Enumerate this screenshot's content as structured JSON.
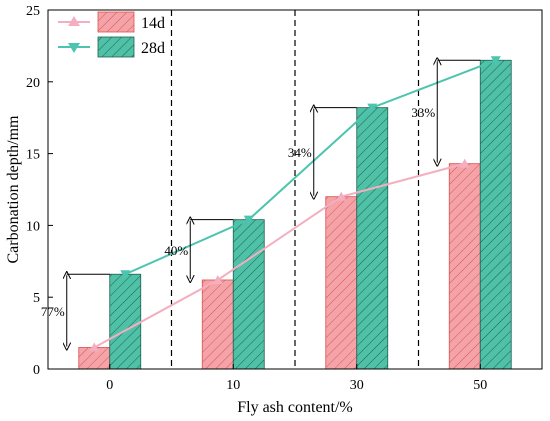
{
  "chart_data": {
    "type": "bar",
    "categories": [
      "0",
      "10",
      "30",
      "50"
    ],
    "xlabel": "Fly ash content/%",
    "ylabel": "Carbonation depth/mm",
    "ylim": [
      0,
      25
    ],
    "yticks": [
      0,
      5,
      10,
      15,
      20,
      25
    ],
    "grid": false,
    "legend_position": "top-left",
    "series": [
      {
        "name": "14d",
        "values": [
          1.5,
          6.2,
          12.0,
          14.3
        ],
        "color": "#f4a3a8",
        "hatch_color": "#d9534f",
        "line_color": "#f4aec0",
        "marker": "triangle-up"
      },
      {
        "name": "28d",
        "values": [
          6.6,
          10.4,
          18.2,
          21.5
        ],
        "color": "#4fc1a6",
        "hatch_color": "#1f5f50",
        "line_color": "#4cc4ae",
        "marker": "triangle-down"
      }
    ],
    "annotations": [
      {
        "category": "0",
        "text": "77%"
      },
      {
        "category": "10",
        "text": "40%"
      },
      {
        "category": "30",
        "text": "34%"
      },
      {
        "category": "50",
        "text": "33%"
      }
    ]
  }
}
